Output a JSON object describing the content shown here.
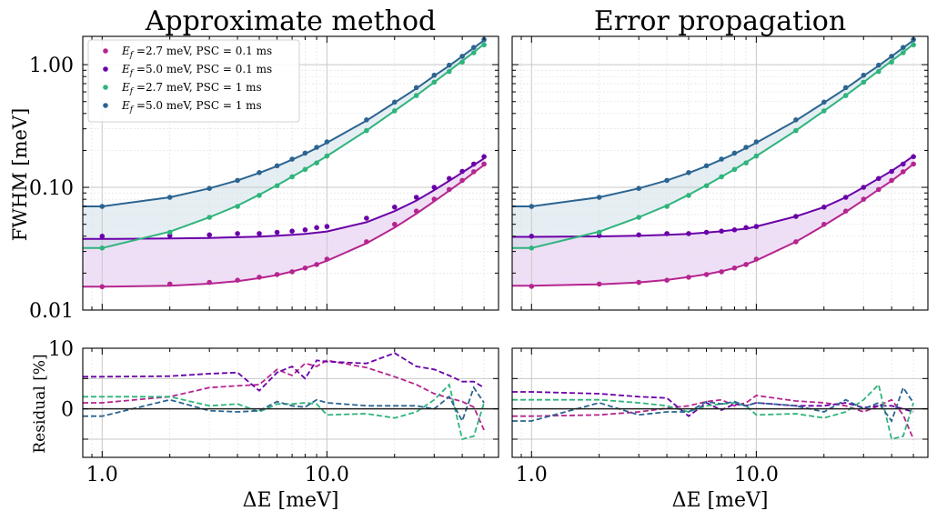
{
  "chart_data": {
    "type": "line",
    "panels": [
      {
        "title": "Approximate method"
      },
      {
        "title": "Error propagation"
      }
    ],
    "ylabel_top": "FWHM [meV]",
    "ylabel_bottom": "Residual [%]",
    "xlabel": "ΔE [meV]",
    "xscale": "log",
    "yscale_top": "log",
    "xlim": [
      0.82,
      58
    ],
    "ylim_top": [
      0.01,
      1.7
    ],
    "ylim_bottom": [
      -8,
      10
    ],
    "x_ticks": [
      {
        "value": 1,
        "label": "1.0"
      },
      {
        "value": 10,
        "label": "10.0"
      }
    ],
    "y_ticks_top": [
      {
        "value": 0.01,
        "label": "0.01"
      },
      {
        "value": 0.1,
        "label": "0.10"
      },
      {
        "value": 1,
        "label": "1.00"
      }
    ],
    "y_ticks_bottom": [
      {
        "value": 0,
        "label": "0"
      },
      {
        "value": 10,
        "label": "10"
      }
    ],
    "grid": true,
    "legend_position": "top-left",
    "x": [
      1,
      2,
      3,
      4,
      5,
      6,
      7,
      8,
      9,
      10,
      15,
      20,
      25,
      30,
      35,
      40,
      45,
      50
    ],
    "series": [
      {
        "name": "E_f =2.7 meV, PSC = 0.1 ms",
        "legend": {
          "sym": "E",
          "sub": "f",
          "rest": " =2.7 meV, PSC = 0.1 ms"
        },
        "color": "#b5258f",
        "points_approx": [
          0.0155,
          0.0163,
          0.0168,
          0.0175,
          0.0185,
          0.0195,
          0.0205,
          0.022,
          0.0235,
          0.026,
          0.036,
          0.05,
          0.064,
          0.08,
          0.096,
          0.114,
          0.134,
          0.155
        ],
        "curve_approx": [
          0.0155,
          0.0158,
          0.0164,
          0.0172,
          0.0182,
          0.0193,
          0.0206,
          0.022,
          0.0235,
          0.0252,
          0.035,
          0.047,
          0.061,
          0.077,
          0.094,
          0.112,
          0.132,
          0.152
        ],
        "points_error": [
          0.0156,
          0.0163,
          0.0168,
          0.0175,
          0.0185,
          0.0195,
          0.0205,
          0.022,
          0.0235,
          0.026,
          0.036,
          0.05,
          0.064,
          0.08,
          0.096,
          0.114,
          0.134,
          0.155
        ],
        "curve_error": [
          0.0158,
          0.0162,
          0.0168,
          0.0176,
          0.0186,
          0.0196,
          0.0207,
          0.022,
          0.0236,
          0.0254,
          0.036,
          0.049,
          0.063,
          0.079,
          0.096,
          0.113,
          0.133,
          0.155
        ],
        "residual_approx": [
          1,
          2,
          3.5,
          3.8,
          4,
          6.5,
          5.5,
          7.5,
          7,
          8,
          6.8,
          5.3,
          4,
          2.5,
          1.8,
          1.2,
          0.3,
          -3.5
        ],
        "residual_error": [
          -1.2,
          -1,
          -0.5,
          0.1,
          0.5,
          1.2,
          1.5,
          0.5,
          1,
          2.2,
          1.3,
          1,
          0.5,
          -0.5,
          0.5,
          1.5,
          -1,
          -5
        ]
      },
      {
        "name": "E_f =5.0 meV, PSC = 0.1 ms",
        "legend": {
          "sym": "E",
          "sub": "f",
          "rest": " =5.0 meV, PSC = 0.1 ms"
        },
        "color": "#6a00a8",
        "points_approx": [
          0.04,
          0.0405,
          0.041,
          0.042,
          0.042,
          0.043,
          0.044,
          0.045,
          0.047,
          0.048,
          0.056,
          0.069,
          0.083,
          0.1,
          0.118,
          0.135,
          0.155,
          0.178
        ],
        "curve_approx": [
          0.038,
          0.0383,
          0.0387,
          0.0392,
          0.0397,
          0.0403,
          0.041,
          0.0418,
          0.0427,
          0.0437,
          0.052,
          0.064,
          0.078,
          0.095,
          0.113,
          0.132,
          0.152,
          0.172
        ],
        "points_error": [
          0.04,
          0.0405,
          0.041,
          0.042,
          0.042,
          0.043,
          0.044,
          0.045,
          0.047,
          0.048,
          0.058,
          0.069,
          0.083,
          0.1,
          0.118,
          0.135,
          0.155,
          0.178
        ],
        "curve_error": [
          0.0395,
          0.0398,
          0.0403,
          0.041,
          0.0418,
          0.0428,
          0.0438,
          0.045,
          0.046,
          0.048,
          0.058,
          0.069,
          0.083,
          0.1,
          0.118,
          0.136,
          0.157,
          0.18
        ],
        "residual_approx": [
          5.3,
          5.4,
          5.8,
          6,
          3,
          6,
          7,
          5,
          8,
          7.8,
          7.5,
          9.2,
          7,
          6.5,
          5.5,
          4.5,
          4.5,
          3.5
        ],
        "residual_error": [
          2.8,
          2.5,
          2,
          1.8,
          -1.2,
          1,
          -0.2,
          0.8,
          0.5,
          1,
          0.5,
          0.5,
          1,
          0.2,
          0.5,
          0.5,
          0,
          -0.5
        ]
      },
      {
        "name": "E_f =2.7 meV, PSC = 1 ms",
        "legend": {
          "sym": "E",
          "sub": "f",
          "rest": " =2.7 meV, PSC = 1 ms"
        },
        "color": "#2fb47c",
        "points_approx": [
          0.032,
          0.043,
          0.057,
          0.07,
          0.086,
          0.103,
          0.122,
          0.14,
          0.158,
          0.18,
          0.29,
          0.42,
          0.56,
          0.72,
          0.88,
          1.05,
          1.25,
          1.45
        ],
        "curve_approx": [
          0.032,
          0.0435,
          0.057,
          0.071,
          0.087,
          0.104,
          0.122,
          0.14,
          0.16,
          0.18,
          0.29,
          0.42,
          0.56,
          0.72,
          0.89,
          1.07,
          1.26,
          1.47
        ],
        "points_error": [
          0.032,
          0.043,
          0.057,
          0.07,
          0.086,
          0.103,
          0.122,
          0.14,
          0.158,
          0.18,
          0.29,
          0.42,
          0.56,
          0.72,
          0.88,
          1.05,
          1.25,
          1.45
        ],
        "curve_error": [
          0.032,
          0.0435,
          0.057,
          0.071,
          0.087,
          0.104,
          0.122,
          0.14,
          0.16,
          0.18,
          0.29,
          0.42,
          0.56,
          0.72,
          0.89,
          1.07,
          1.26,
          1.47
        ],
        "residual_approx": [
          2,
          2,
          0.5,
          0.8,
          -0.5,
          0.8,
          0.8,
          1,
          0.8,
          -1,
          -0.8,
          -1.5,
          -0.5,
          1.5,
          4,
          -5,
          -4.5,
          1
        ],
        "residual_error": [
          1.5,
          1.5,
          1,
          0.5,
          -0.5,
          0.5,
          0.8,
          1,
          0.5,
          -1,
          -0.8,
          -1.5,
          -0.5,
          1.5,
          4,
          -5,
          -4.5,
          1
        ]
      },
      {
        "name": "E_f =5.0 meV, PSC = 1 ms",
        "legend": {
          "sym": "E",
          "sub": "f",
          "rest": " =5.0 meV, PSC = 1 ms"
        },
        "color": "#2c6491",
        "points_approx": [
          0.07,
          0.083,
          0.098,
          0.114,
          0.132,
          0.15,
          0.17,
          0.19,
          0.212,
          0.235,
          0.355,
          0.495,
          0.65,
          0.82,
          0.99,
          1.17,
          1.38,
          1.6
        ],
        "curve_approx": [
          0.07,
          0.083,
          0.098,
          0.114,
          0.131,
          0.149,
          0.168,
          0.188,
          0.209,
          0.231,
          0.35,
          0.49,
          0.64,
          0.81,
          0.98,
          1.17,
          1.37,
          1.58
        ],
        "points_error": [
          0.07,
          0.083,
          0.098,
          0.114,
          0.132,
          0.15,
          0.17,
          0.19,
          0.212,
          0.235,
          0.355,
          0.495,
          0.65,
          0.82,
          0.99,
          1.17,
          1.38,
          1.6
        ],
        "curve_error": [
          0.07,
          0.083,
          0.098,
          0.114,
          0.131,
          0.149,
          0.168,
          0.188,
          0.209,
          0.231,
          0.35,
          0.49,
          0.64,
          0.81,
          0.98,
          1.17,
          1.37,
          1.58
        ],
        "residual_approx": [
          -1.2,
          1.5,
          -0.3,
          -0.5,
          -0.3,
          1.2,
          0.5,
          0.3,
          1.5,
          1,
          0.5,
          0.5,
          0.5,
          0,
          2,
          -2,
          3.5,
          1
        ],
        "residual_error": [
          -2,
          1,
          -1,
          -0.5,
          -0.5,
          1.2,
          0.8,
          1.2,
          0.5,
          1,
          0.5,
          -0.5,
          1.5,
          0,
          1,
          -2,
          3.5,
          1
        ]
      }
    ],
    "fills": [
      {
        "between": [
          0,
          1
        ],
        "color": "#dcb9ec"
      },
      {
        "between": [
          2,
          3
        ],
        "color": "#c6dae4"
      }
    ]
  }
}
